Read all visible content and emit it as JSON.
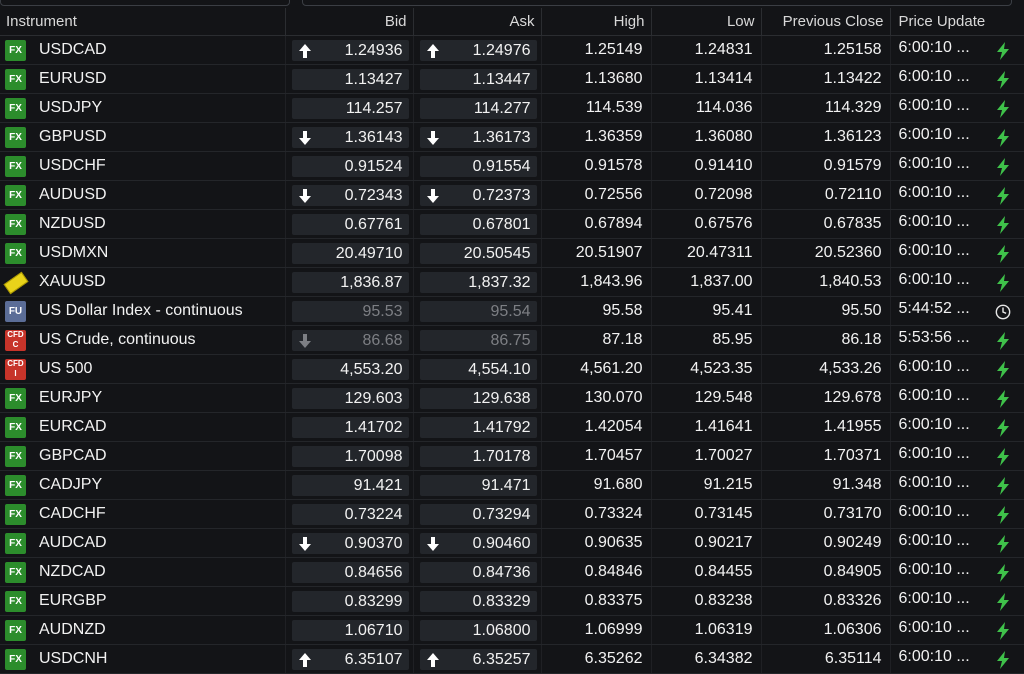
{
  "columns": {
    "instrument": "Instrument",
    "bid": "Bid",
    "ask": "Ask",
    "high": "High",
    "low": "Low",
    "prev": "Previous Close",
    "update": "Price Update"
  },
  "rows": [
    {
      "type": "FX",
      "name": "USDCAD",
      "bid": "1.24936",
      "ask": "1.24976",
      "high": "1.25149",
      "low": "1.24831",
      "prev": "1.25158",
      "update": "6:00:10 ...",
      "dir": "up",
      "status": "live"
    },
    {
      "type": "FX",
      "name": "EURUSD",
      "bid": "1.13427",
      "ask": "1.13447",
      "high": "1.13680",
      "low": "1.13414",
      "prev": "1.13422",
      "update": "6:00:10 ...",
      "dir": "none",
      "status": "live"
    },
    {
      "type": "FX",
      "name": "USDJPY",
      "bid": "114.257",
      "ask": "114.277",
      "high": "114.539",
      "low": "114.036",
      "prev": "114.329",
      "update": "6:00:10 ...",
      "dir": "none",
      "status": "live"
    },
    {
      "type": "FX",
      "name": "GBPUSD",
      "bid": "1.36143",
      "ask": "1.36173",
      "high": "1.36359",
      "low": "1.36080",
      "prev": "1.36123",
      "update": "6:00:10 ...",
      "dir": "down",
      "status": "live"
    },
    {
      "type": "FX",
      "name": "USDCHF",
      "bid": "0.91524",
      "ask": "0.91554",
      "high": "0.91578",
      "low": "0.91410",
      "prev": "0.91579",
      "update": "6:00:10 ...",
      "dir": "none",
      "status": "live"
    },
    {
      "type": "FX",
      "name": "AUDUSD",
      "bid": "0.72343",
      "ask": "0.72373",
      "high": "0.72556",
      "low": "0.72098",
      "prev": "0.72110",
      "update": "6:00:10 ...",
      "dir": "down",
      "status": "live"
    },
    {
      "type": "FX",
      "name": "NZDUSD",
      "bid": "0.67761",
      "ask": "0.67801",
      "high": "0.67894",
      "low": "0.67576",
      "prev": "0.67835",
      "update": "6:00:10 ...",
      "dir": "none",
      "status": "live"
    },
    {
      "type": "FX",
      "name": "USDMXN",
      "bid": "20.49710",
      "ask": "20.50545",
      "high": "20.51907",
      "low": "20.47311",
      "prev": "20.52360",
      "update": "6:00:10 ...",
      "dir": "none",
      "status": "live"
    },
    {
      "type": "GOLD",
      "name": "XAUUSD",
      "bid": "1,836.87",
      "ask": "1,837.32",
      "high": "1,843.96",
      "low": "1,837.00",
      "prev": "1,840.53",
      "update": "6:00:10 ...",
      "dir": "none",
      "status": "live"
    },
    {
      "type": "FU",
      "name": "US Dollar Index - continuous",
      "bid": "95.53",
      "ask": "95.54",
      "high": "95.58",
      "low": "95.41",
      "prev": "95.50",
      "update": "5:44:52 ...",
      "dir": "none",
      "status": "delayed"
    },
    {
      "type": "CFD",
      "sub": "C",
      "name": "US Crude, continuous",
      "bid": "86.68",
      "ask": "86.75",
      "high": "87.18",
      "low": "85.95",
      "prev": "86.18",
      "update": "5:53:56 ...",
      "dir": "down-stale",
      "status": "live-stale"
    },
    {
      "type": "CFD",
      "sub": "I",
      "name": "US 500",
      "bid": "4,553.20",
      "ask": "4,554.10",
      "high": "4,561.20",
      "low": "4,523.35",
      "prev": "4,533.26",
      "update": "6:00:10 ...",
      "dir": "none",
      "status": "live"
    },
    {
      "type": "FX",
      "name": "EURJPY",
      "bid": "129.603",
      "ask": "129.638",
      "high": "130.070",
      "low": "129.548",
      "prev": "129.678",
      "update": "6:00:10 ...",
      "dir": "none",
      "status": "live"
    },
    {
      "type": "FX",
      "name": "EURCAD",
      "bid": "1.41702",
      "ask": "1.41792",
      "high": "1.42054",
      "low": "1.41641",
      "prev": "1.41955",
      "update": "6:00:10 ...",
      "dir": "none",
      "status": "live"
    },
    {
      "type": "FX",
      "name": "GBPCAD",
      "bid": "1.70098",
      "ask": "1.70178",
      "high": "1.70457",
      "low": "1.70027",
      "prev": "1.70371",
      "update": "6:00:10 ...",
      "dir": "none",
      "status": "live"
    },
    {
      "type": "FX",
      "name": "CADJPY",
      "bid": "91.421",
      "ask": "91.471",
      "high": "91.680",
      "low": "91.215",
      "prev": "91.348",
      "update": "6:00:10 ...",
      "dir": "none",
      "status": "live"
    },
    {
      "type": "FX",
      "name": "CADCHF",
      "bid": "0.73224",
      "ask": "0.73294",
      "high": "0.73324",
      "low": "0.73145",
      "prev": "0.73170",
      "update": "6:00:10 ...",
      "dir": "none",
      "status": "live"
    },
    {
      "type": "FX",
      "name": "AUDCAD",
      "bid": "0.90370",
      "ask": "0.90460",
      "high": "0.90635",
      "low": "0.90217",
      "prev": "0.90249",
      "update": "6:00:10 ...",
      "dir": "down",
      "status": "live"
    },
    {
      "type": "FX",
      "name": "NZDCAD",
      "bid": "0.84656",
      "ask": "0.84736",
      "high": "0.84846",
      "low": "0.84455",
      "prev": "0.84905",
      "update": "6:00:10 ...",
      "dir": "none",
      "status": "live"
    },
    {
      "type": "FX",
      "name": "EURGBP",
      "bid": "0.83299",
      "ask": "0.83329",
      "high": "0.83375",
      "low": "0.83238",
      "prev": "0.83326",
      "update": "6:00:10 ...",
      "dir": "none",
      "status": "live"
    },
    {
      "type": "FX",
      "name": "AUDNZD",
      "bid": "1.06710",
      "ask": "1.06800",
      "high": "1.06999",
      "low": "1.06319",
      "prev": "1.06306",
      "update": "6:00:10 ...",
      "dir": "none",
      "status": "live"
    },
    {
      "type": "FX",
      "name": "USDCNH",
      "bid": "6.35107",
      "ask": "6.35257",
      "high": "6.35262",
      "low": "6.34382",
      "prev": "6.35114",
      "update": "6:00:10 ...",
      "dir": "up",
      "status": "live"
    }
  ],
  "colors": {
    "background": "#131417",
    "cell_box": "#23262b",
    "fx_badge": "#2c8d2c",
    "fu_badge": "#5b6d97",
    "cfd_badge": "#c7342a",
    "live_icon": "#3fc24a",
    "stale_text": "#7d7f84"
  },
  "icons": {
    "live": "lightning-bolt-icon",
    "delayed": "clock-icon",
    "up": "arrow-up-icon",
    "down": "arrow-down-icon"
  }
}
